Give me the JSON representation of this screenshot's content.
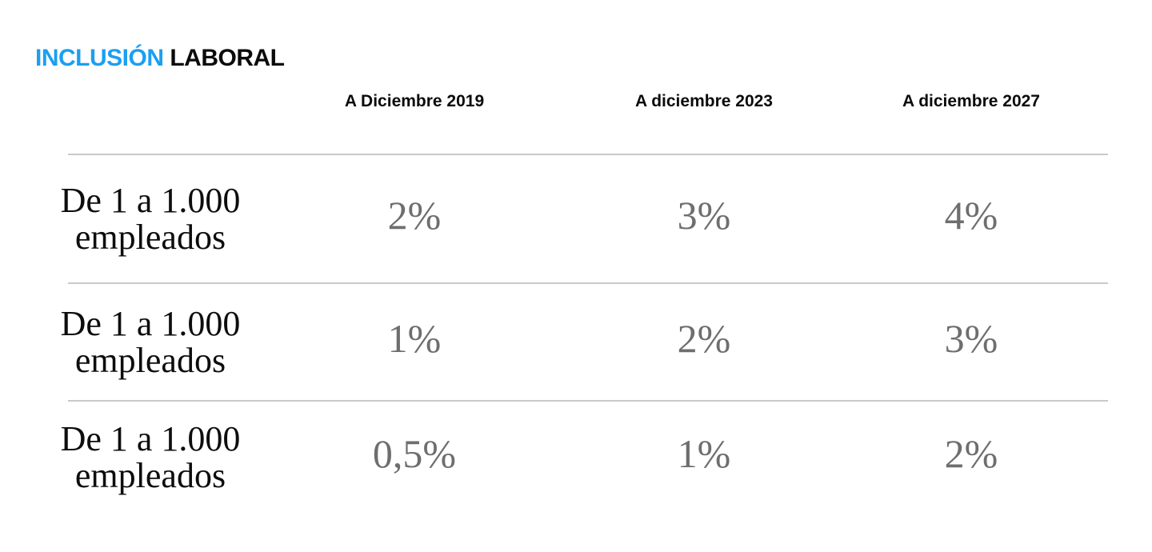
{
  "title": {
    "highlight": "INCLUSIÓN",
    "rest": "LABORAL"
  },
  "colors": {
    "accent_blue": "#1b9ff2",
    "text_black": "#0b0b0b",
    "value_gray": "#6e6e6e",
    "divider_gray": "#c9c9c9",
    "background": "#ffffff"
  },
  "table": {
    "columns": [
      "A Diciembre 2019",
      "A diciembre 2023",
      "A diciembre 2027"
    ],
    "rows": [
      {
        "label_line1": "De 1 a 1.000",
        "label_line2": "empleados",
        "values": [
          "2%",
          "3%",
          "4%"
        ]
      },
      {
        "label_line1": "De 1 a 1.000",
        "label_line2": "empleados",
        "values": [
          "1%",
          "2%",
          "3%"
        ]
      },
      {
        "label_line1": "De 1 a 1.000",
        "label_line2": "empleados",
        "values": [
          "0,5%",
          "1%",
          "2%"
        ]
      }
    ]
  }
}
